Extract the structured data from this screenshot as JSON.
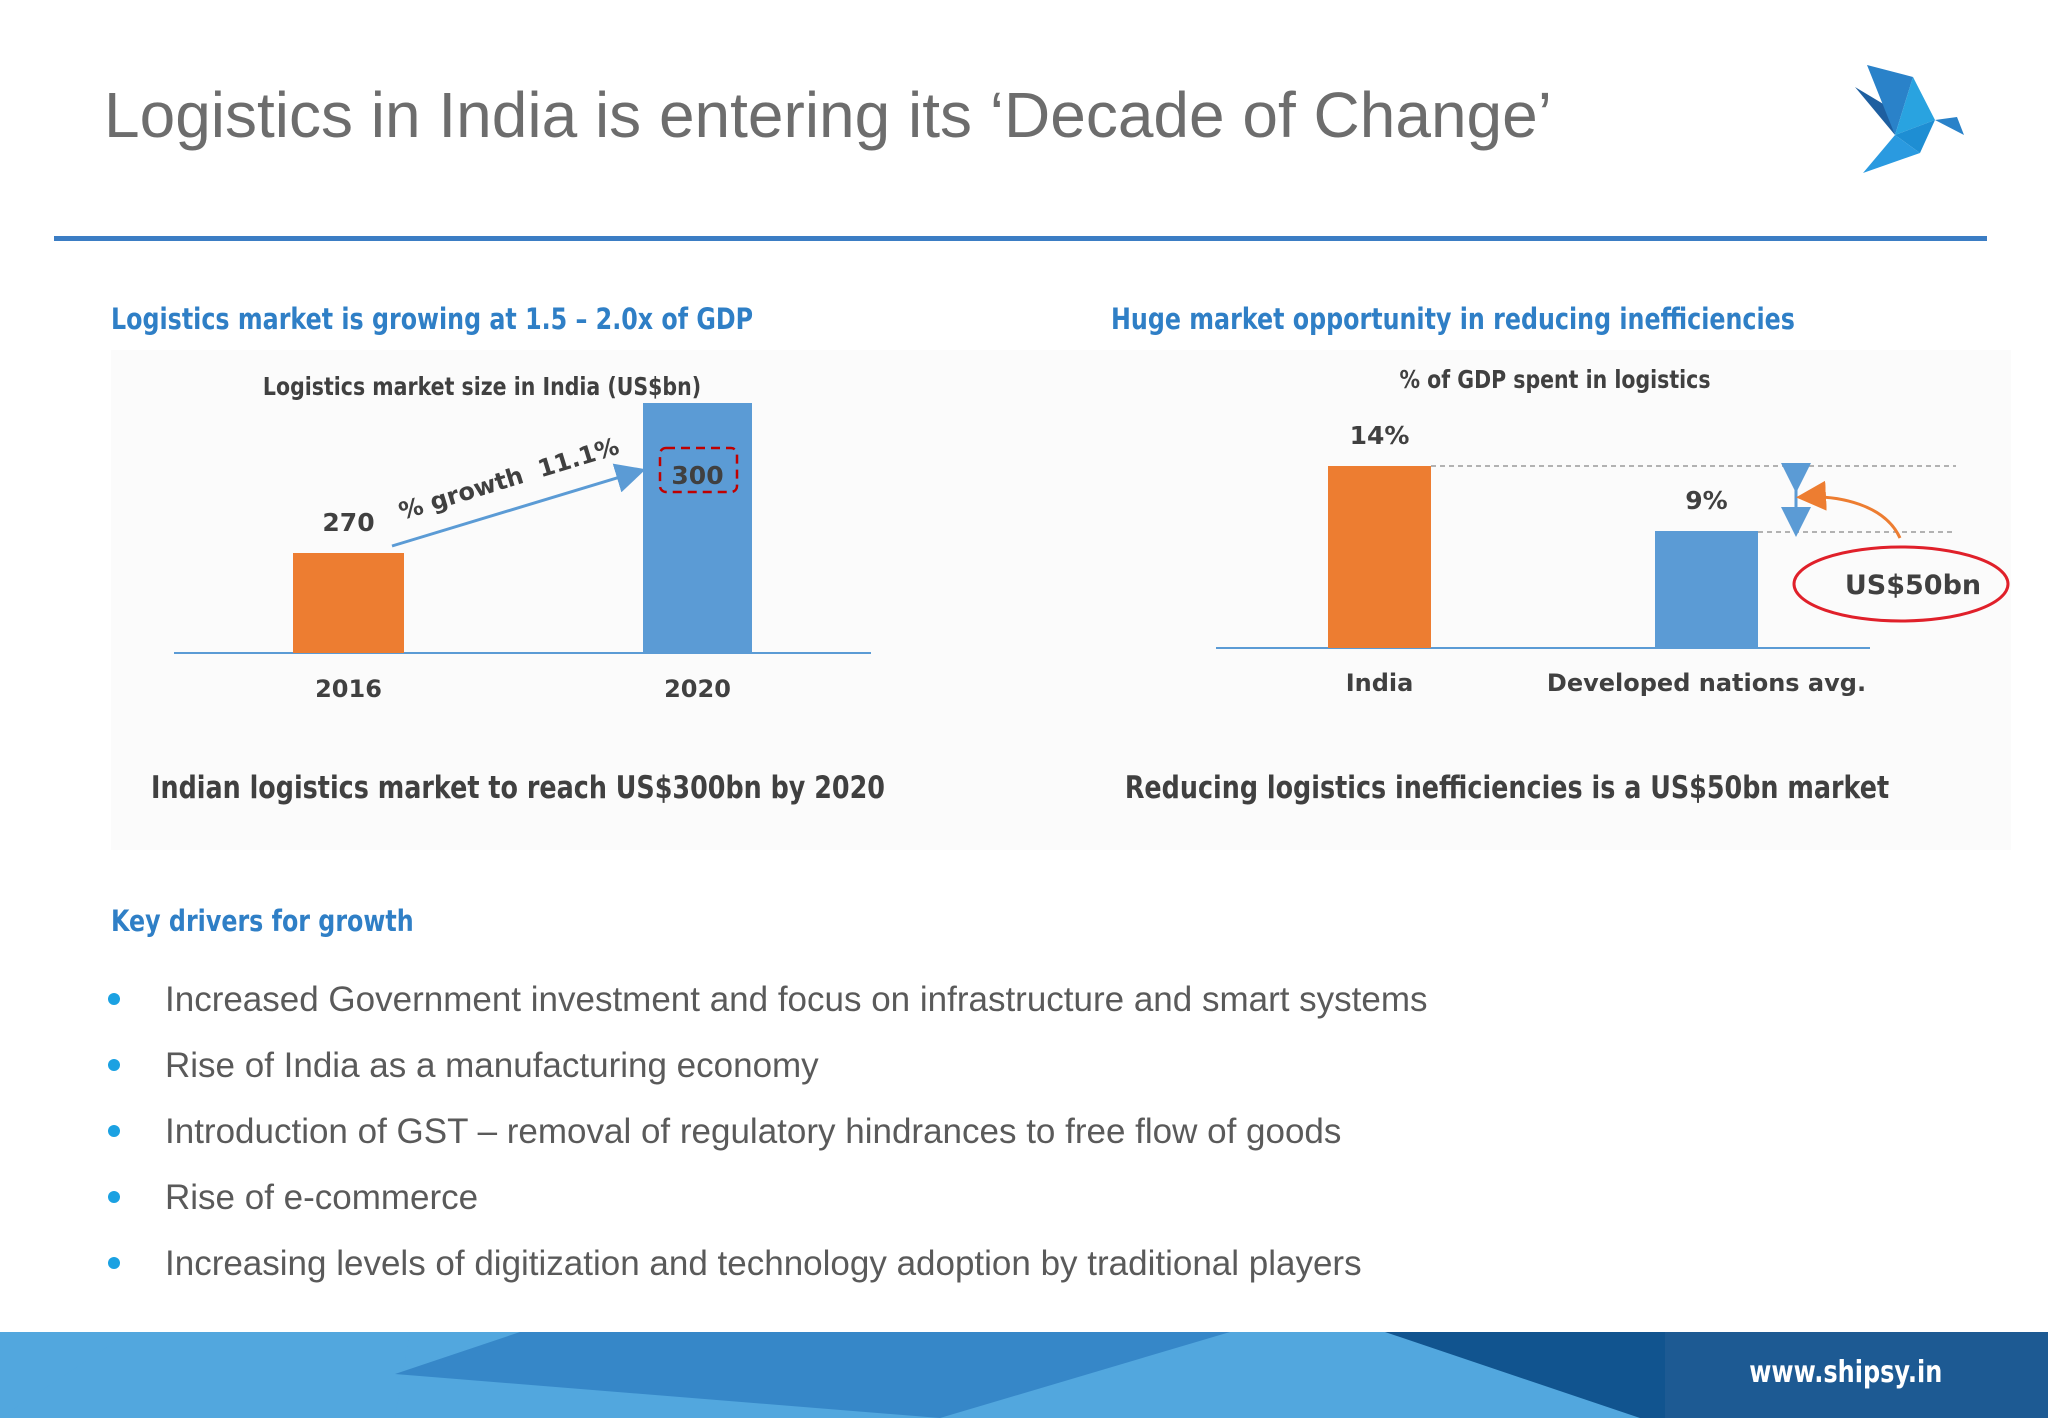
{
  "header": {
    "title": "Logistics in India is entering its ‘Decade of Change’",
    "logo": "shipsy-bird-logo"
  },
  "left_section": {
    "heading": "Logistics market is growing at 1.5 – 2.0x of GDP",
    "caption": "Indian logistics market to reach US$300bn by 2020"
  },
  "right_section": {
    "heading": "Huge market opportunity in reducing inefficiencies",
    "caption": "Reducing logistics inefficiencies is a US$50bn market"
  },
  "chart_data": [
    {
      "type": "bar",
      "title": "Logistics market size in India (US$bn)",
      "categories": [
        "2016",
        "2020"
      ],
      "values": [
        270,
        300
      ],
      "value_labels": [
        "270",
        "300"
      ],
      "colors": [
        "#ed7d31",
        "#5b9bd5"
      ],
      "ylim": [
        250,
        310
      ],
      "annotation": "% growth  11.1%",
      "grid": false
    },
    {
      "type": "bar",
      "title": "% of GDP spent in logistics",
      "categories": [
        "India",
        "Developed nations avg."
      ],
      "values": [
        14,
        9
      ],
      "value_labels": [
        "14%",
        "9%"
      ],
      "colors": [
        "#ed7d31",
        "#5b9bd5"
      ],
      "ylim": [
        0,
        15
      ],
      "annotation": "US$50bn",
      "grid": false
    }
  ],
  "drivers": {
    "heading": "Key drivers for growth",
    "items": [
      "Increased Government investment and focus on infrastructure and smart systems",
      "Rise of India as a manufacturing economy",
      "Introduction of GST – removal of regulatory hindrances to free flow of goods",
      "Rise of e-commerce",
      "Increasing levels of digitization and technology adoption by traditional players"
    ]
  },
  "footer": {
    "url": "www.shipsy.in"
  },
  "colors": {
    "accent": "#2f7fc6",
    "orange": "#ed7d31",
    "blue": "#5b9bd5",
    "red": "#c00000"
  }
}
